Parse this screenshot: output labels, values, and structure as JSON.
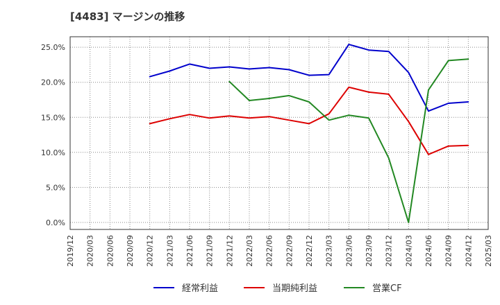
{
  "chart_data": {
    "type": "line",
    "title": "[4483]  マージンの推移",
    "xlabel": "",
    "ylabel": "",
    "ylim": [
      -1,
      26.5
    ],
    "y_ticks": [
      "0.0%",
      "5.0%",
      "10.0%",
      "15.0%",
      "20.0%",
      "25.0%"
    ],
    "y_tick_values": [
      0,
      5,
      10,
      15,
      20,
      25
    ],
    "categories": [
      "2019/12",
      "2020/03",
      "2020/06",
      "2020/09",
      "2020/12",
      "2021/03",
      "2021/06",
      "2021/09",
      "2021/12",
      "2022/03",
      "2022/06",
      "2022/09",
      "2022/12",
      "2023/03",
      "2023/06",
      "2023/09",
      "2023/12",
      "2024/03",
      "2024/06",
      "2024/09",
      "2024/12",
      "2025/03"
    ],
    "grid": true,
    "legend_position": "bottom",
    "series": [
      {
        "name": "経常利益",
        "color": "#0000cc",
        "values": [
          null,
          null,
          null,
          null,
          20.8,
          21.6,
          22.6,
          22.0,
          22.2,
          21.9,
          22.1,
          21.8,
          21.0,
          21.1,
          25.4,
          24.6,
          24.4,
          21.4,
          15.9,
          17.0,
          17.2,
          null
        ]
      },
      {
        "name": "当期純利益",
        "color": "#dd0000",
        "values": [
          null,
          null,
          null,
          null,
          14.1,
          14.8,
          15.4,
          14.9,
          15.2,
          14.9,
          15.1,
          14.6,
          14.1,
          15.5,
          19.3,
          18.6,
          18.3,
          14.4,
          9.7,
          10.9,
          11.0,
          null
        ]
      },
      {
        "name": "営業CF",
        "color": "#228822",
        "values": [
          null,
          null,
          null,
          null,
          null,
          null,
          null,
          null,
          20.1,
          17.4,
          17.7,
          18.1,
          17.2,
          14.6,
          15.3,
          14.9,
          9.2,
          0.0,
          18.9,
          23.1,
          23.3,
          null
        ]
      }
    ]
  }
}
